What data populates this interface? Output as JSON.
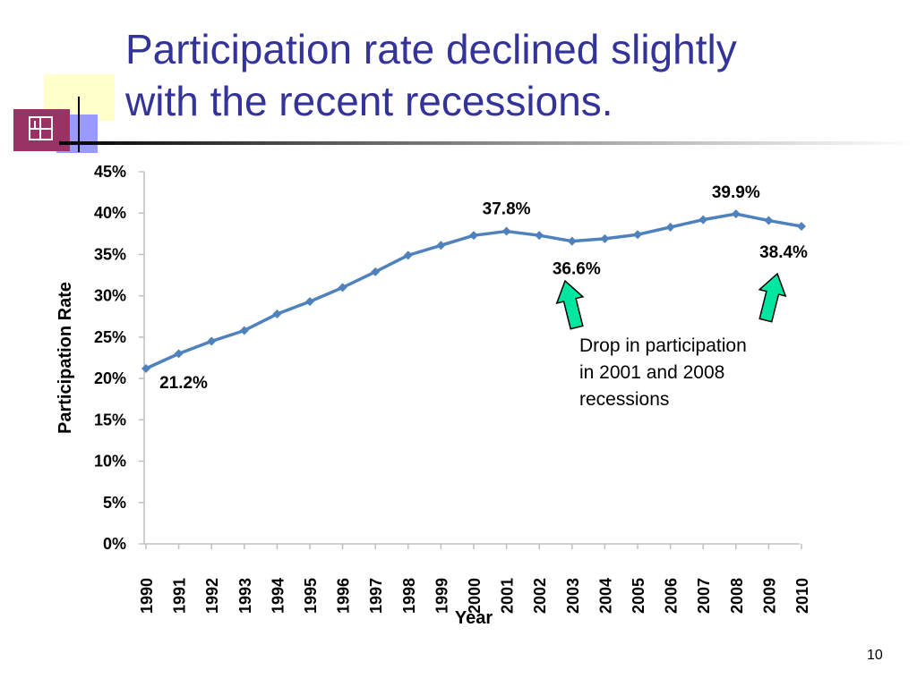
{
  "slide": {
    "title_lines": [
      "Participation rate declined slightly",
      "with the recent recessions."
    ],
    "page_number": "10"
  },
  "colors": {
    "title": "#333399",
    "series_line": "#4f81bd",
    "arrow_fill": "#00e6a0",
    "decor_yellow": "#ffffcc",
    "decor_blue": "#9999ff",
    "decor_maroon": "#993366"
  },
  "chart_data": {
    "type": "line",
    "title": "",
    "xlabel": "Year",
    "ylabel": "Participation Rate",
    "ylim": [
      0,
      45
    ],
    "yticks": [
      "0%",
      "5%",
      "10%",
      "15%",
      "20%",
      "25%",
      "30%",
      "35%",
      "40%",
      "45%"
    ],
    "x": [
      "1990",
      "1991",
      "1992",
      "1993",
      "1994",
      "1995",
      "1996",
      "1997",
      "1998",
      "1999",
      "2000",
      "2001",
      "2002",
      "2003",
      "2004",
      "2005",
      "2006",
      "2007",
      "2008",
      "2009",
      "2010"
    ],
    "series": [
      {
        "values": [
          21.2,
          23.0,
          24.5,
          25.8,
          27.8,
          29.3,
          31.0,
          32.9,
          34.9,
          36.1,
          37.3,
          37.8,
          37.3,
          36.6,
          36.9,
          37.4,
          38.3,
          39.2,
          39.9,
          39.1,
          38.4
        ]
      }
    ],
    "data_labels": [
      {
        "x": "1990",
        "text": "21.2%"
      },
      {
        "x": "2001",
        "text": "37.8%"
      },
      {
        "x": "2003",
        "text": "36.6%"
      },
      {
        "x": "2008",
        "text": "39.9%"
      },
      {
        "x": "2010",
        "text": "38.4%"
      }
    ],
    "annotation": {
      "lines": [
        "Drop in participation",
        "in 2001 and 2008",
        "recessions"
      ],
      "arrows_at": [
        "2003",
        "2010"
      ]
    },
    "grid": false,
    "legend": "none"
  }
}
